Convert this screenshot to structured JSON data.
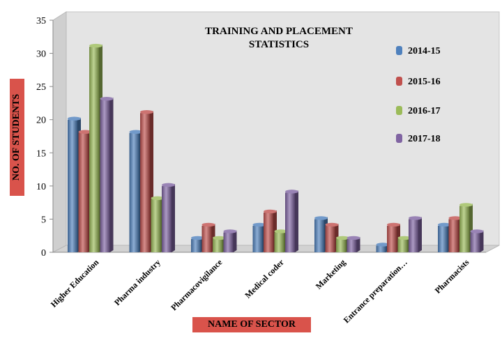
{
  "chart_data": {
    "type": "bar",
    "title": "TRAINING  AND PLACEMENT STATISTICS",
    "xlabel": "NAME OF SECTOR",
    "ylabel": "NO. OF STUDENTS",
    "categories": [
      "Higher Education",
      "Pharma industry",
      "Pharmacovigilance",
      "Medical coder",
      "Marketing",
      "Entrance preparation…",
      "Pharmacists"
    ],
    "series": [
      {
        "name": "2014-15",
        "color": "#4f81bd",
        "values": [
          20,
          18,
          2,
          4,
          5,
          1,
          4
        ]
      },
      {
        "name": "2015-16",
        "color": "#c0504d",
        "values": [
          18,
          21,
          4,
          6,
          4,
          4,
          5
        ]
      },
      {
        "name": "2016-17",
        "color": "#9bbb59",
        "values": [
          31,
          8,
          2,
          3,
          2,
          2,
          7
        ]
      },
      {
        "name": "2017-18",
        "color": "#8064a2",
        "values": [
          23,
          10,
          3,
          9,
          2,
          5,
          3
        ]
      }
    ],
    "ylim": [
      0,
      35
    ],
    "yticks": [
      "0",
      "5",
      "10",
      "15",
      "20",
      "25",
      "30",
      "35"
    ],
    "grid": false,
    "legend_position": "right"
  }
}
